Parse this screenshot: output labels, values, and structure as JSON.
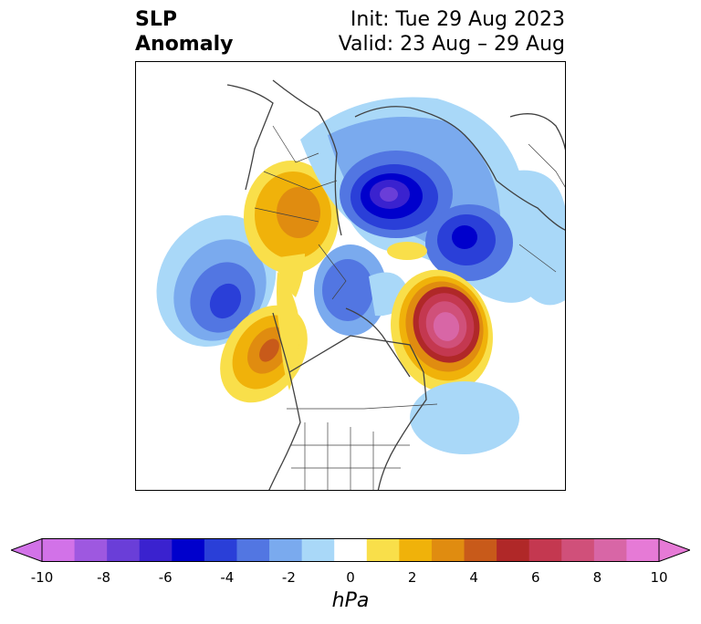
{
  "title": {
    "left_line1": "SLP",
    "left_line2": "Anomaly",
    "right_line1": "Init: Tue 29 Aug 2023",
    "right_line2": "Valid: 23 Aug – 29 Aug"
  },
  "colorbar": {
    "label": "hPa",
    "ticks": [
      "-10",
      "-8",
      "-6",
      "-4",
      "-2",
      "0",
      "2",
      "4",
      "6",
      "8",
      "10"
    ],
    "levels": [
      -10,
      -9,
      -8,
      -7,
      -6,
      -5,
      -4,
      -3,
      -2,
      -1,
      1,
      2,
      3,
      4,
      5,
      6,
      7,
      8,
      9,
      10
    ],
    "colors": [
      "#d272e8",
      "#9e58e0",
      "#6a3ed8",
      "#3a22cf",
      "#0000cc",
      "#2a3fd8",
      "#5276e2",
      "#7aaaee",
      "#a9d8f8",
      "#ffffff",
      "#f9df4a",
      "#f0b20a",
      "#e08c10",
      "#c85a1a",
      "#b02828",
      "#c43850",
      "#d0507a",
      "#d866a6",
      "#e67ad6"
    ],
    "extend_low_color": "#d272e8",
    "extend_high_color": "#e67ad6"
  },
  "map": {
    "projection": "north-polar-stereographic",
    "field": "SLP Anomaly",
    "units": "hPa",
    "features": [
      {
        "name": "negative-anomaly-arctic",
        "min_value": -7
      },
      {
        "name": "negative-anomaly-siberia",
        "min_value": -6
      },
      {
        "name": "negative-anomaly-gulf-of-alaska-pacific",
        "min_value": -5
      },
      {
        "name": "negative-anomaly-central-arctic",
        "min_value": -4
      },
      {
        "name": "positive-anomaly-north-atlantic",
        "max_value": 8
      },
      {
        "name": "positive-anomaly-northeast-pacific",
        "max_value": 5
      },
      {
        "name": "positive-anomaly-eurasia",
        "max_value": 4
      },
      {
        "name": "negative-anomaly-central-atlantic",
        "min_value": -2
      }
    ]
  }
}
